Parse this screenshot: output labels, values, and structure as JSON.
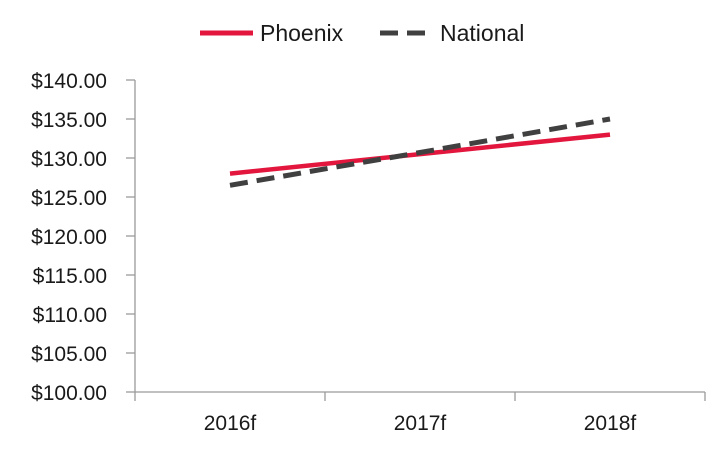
{
  "chart_data": {
    "type": "line",
    "categories": [
      "2016f",
      "2017f",
      "2018f"
    ],
    "series": [
      {
        "name": "Phoenix",
        "values": [
          128.0,
          130.5,
          133.0
        ],
        "color": "#e3173e",
        "style": "solid"
      },
      {
        "name": "National",
        "values": [
          126.5,
          130.7,
          135.0
        ],
        "color": "#404040",
        "style": "dashed"
      }
    ],
    "ylim": [
      100,
      140
    ],
    "yticks": [
      100,
      105,
      110,
      115,
      120,
      125,
      130,
      135,
      140
    ],
    "ytick_labels": [
      "$100.00",
      "$105.00",
      "$110.00",
      "$115.00",
      "$120.00",
      "$125.00",
      "$130.00",
      "$135.00",
      "$140.00"
    ],
    "legend_position": "top-center",
    "grid": false
  }
}
